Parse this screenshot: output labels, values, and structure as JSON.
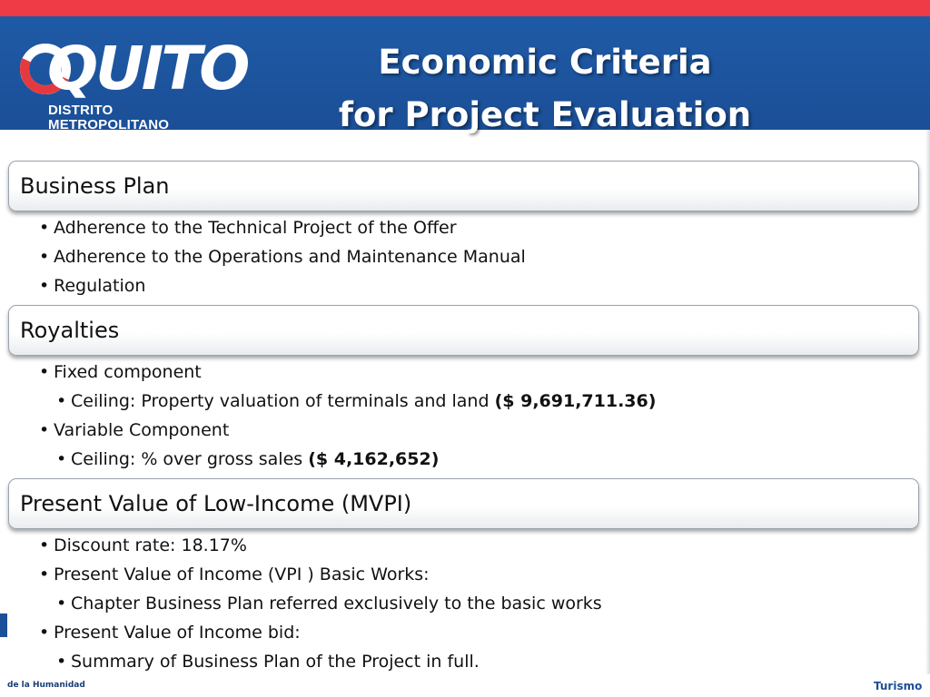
{
  "header": {
    "logo": {
      "word": "QUITO",
      "line1": "DISTRITO",
      "line2": "METROPOLITANO"
    },
    "title_line1": "Economic Criteria",
    "title_line2": "for Project Evaluation"
  },
  "sections": [
    {
      "heading": "Business Plan",
      "items": [
        {
          "text": "Adherence to the Technical Project of the Offer"
        },
        {
          "text": "Adherence to the Operations and Maintenance Manual"
        },
        {
          "text": "Regulation"
        }
      ]
    },
    {
      "heading": "Royalties",
      "items": [
        {
          "text": "Fixed component"
        },
        {
          "text": "Ceiling: Property valuation of terminals and land ",
          "bold": "($  9,691,711.36)"
        },
        {
          "text": "Variable Component"
        },
        {
          "text": "Ceiling: % over gross sales ",
          "bold": "($ 4,162,652)"
        }
      ]
    },
    {
      "heading": "Present Value of Low-Income (MVPI)",
      "items": [
        {
          "text": "Discount rate: 18.17%"
        },
        {
          "text": "Present Value of Income (VPI ) Basic Works:"
        },
        {
          "text": "Chapter Business Plan referred exclusively to the basic works"
        },
        {
          "text": "Present Value of Income bid:"
        },
        {
          "text": "Summary of Business Plan of the Project in full."
        }
      ]
    }
  ],
  "footer": {
    "left_text": "de la Humanidad",
    "right_text": "Turismo"
  },
  "colors": {
    "stripe": "#ee3b45",
    "header_blue": "#1b4f97",
    "logo_red": "#e43a3f"
  }
}
